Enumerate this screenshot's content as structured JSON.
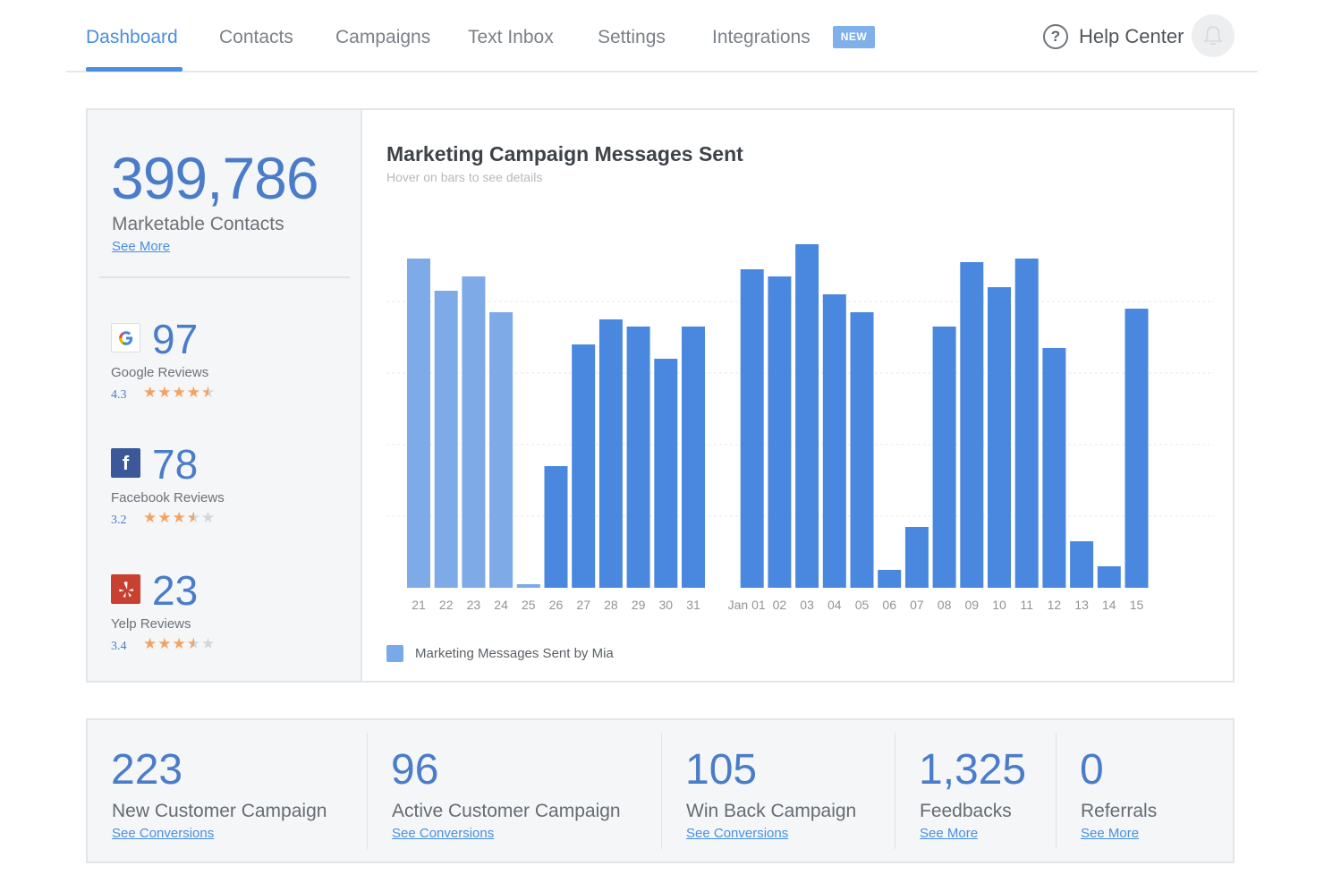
{
  "nav": {
    "tabs": [
      {
        "label": "Dashboard",
        "active": true
      },
      {
        "label": "Contacts"
      },
      {
        "label": "Campaigns"
      },
      {
        "label": "Text Inbox"
      },
      {
        "label": "Settings"
      },
      {
        "label": "Integrations"
      }
    ],
    "new_badge": "NEW",
    "help_label": "Help Center",
    "help_icon_glyph": "?",
    "bell_icon": "bell-icon"
  },
  "summary": {
    "contacts_count": "399,786",
    "contacts_label": "Marketable Contacts",
    "see_more": "See More"
  },
  "reviews": [
    {
      "source": "google",
      "icon": "google-logo",
      "count": "97",
      "label": "Google Reviews",
      "rating": "4.3",
      "stars": 4.3
    },
    {
      "source": "facebook",
      "icon": "facebook-logo",
      "count": "78",
      "label": "Facebook Reviews",
      "rating": "3.2",
      "stars": 3.2
    },
    {
      "source": "yelp",
      "icon": "yelp-logo",
      "count": "23",
      "label": "Yelp Reviews",
      "rating": "3.4",
      "stars": 3.4
    }
  ],
  "chart_data": {
    "type": "bar",
    "title": "Marketing Campaign Messages Sent",
    "subtitle": "Hover on bars to see details",
    "categories": [
      "21",
      "22",
      "23",
      "24",
      "25",
      "26",
      "27",
      "28",
      "29",
      "30",
      "31",
      "Jan 01",
      "02",
      "03",
      "04",
      "05",
      "06",
      "07",
      "08",
      "09",
      "10",
      "11",
      "12",
      "13",
      "14",
      "15"
    ],
    "values": [
      92,
      83,
      87,
      77,
      1,
      34,
      68,
      75,
      73,
      64,
      73,
      89,
      87,
      96,
      82,
      77,
      5,
      17,
      73,
      91,
      84,
      92,
      67,
      13,
      6,
      78
    ],
    "light_until_index": 4,
    "gap_after_index": 10,
    "ylim": [
      0,
      100
    ],
    "grid": true,
    "colors": {
      "light": "#7eaae8",
      "dark": "#4a88df"
    },
    "legend": "Marketing Messages Sent by Mia"
  },
  "stats": [
    {
      "value": "223",
      "label": "New Customer Campaign",
      "link": "See Conversions"
    },
    {
      "value": "96",
      "label": "Active Customer Campaign",
      "link": "See Conversions"
    },
    {
      "value": "105",
      "label": "Win Back Campaign",
      "link": "See Conversions"
    },
    {
      "value": "1,325",
      "label": "Feedbacks",
      "link": "See More"
    },
    {
      "value": "0",
      "label": "Referrals",
      "link": "See More"
    }
  ]
}
